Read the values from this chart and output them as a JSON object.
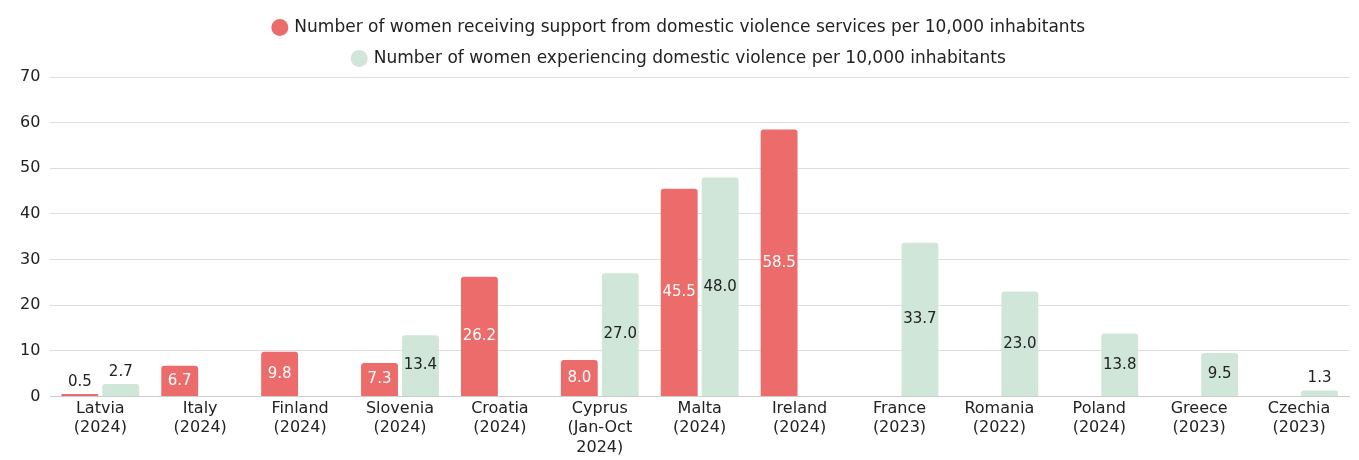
{
  "chart_data": {
    "type": "bar",
    "categories": [
      "Latvia (2024)",
      "Italy (2024)",
      "Finland (2024)",
      "Slovenia (2024)",
      "Croatia (2024)",
      "Cyprus (Jan-Oct 2024)",
      "Malta (2024)",
      "Ireland (2024)",
      "France (2023)",
      "Romania (2022)",
      "Poland (2024)",
      "Greece (2023)",
      "Czechia (2023)"
    ],
    "series": [
      {
        "name": "Number of women receiving support from domestic violence services per 10,000 inhabitants",
        "color": "#ec6b6b",
        "values": [
          0.5,
          6.7,
          9.8,
          7.3,
          26.2,
          8.0,
          45.5,
          58.5,
          null,
          null,
          null,
          null,
          null
        ],
        "value_labels": [
          "0.5",
          "6.7",
          "9.8",
          "7.3",
          "26.2",
          "8.0",
          "45.5",
          "58.5",
          null,
          null,
          null,
          null,
          null
        ]
      },
      {
        "name": "Number of women experiencing domestic violence per 10,000 inhabitants",
        "color": "#cfe6d9",
        "values": [
          2.7,
          null,
          null,
          13.4,
          null,
          27.0,
          48.0,
          null,
          33.7,
          23.0,
          13.8,
          9.5,
          1.3
        ],
        "value_labels": [
          "2.7",
          null,
          null,
          "13.4",
          null,
          "27.0",
          "48.0",
          null,
          "33.7",
          "23.0",
          "13.8",
          "9.5",
          "1.3"
        ]
      }
    ],
    "ylim": [
      0,
      70
    ],
    "yticks": [
      0,
      10,
      20,
      30,
      40,
      50,
      60,
      70
    ],
    "grid": "y",
    "legend": "top"
  }
}
